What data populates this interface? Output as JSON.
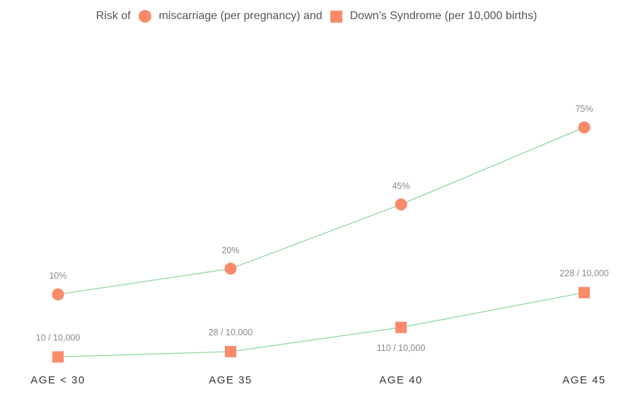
{
  "chart_data": {
    "type": "line",
    "legend": {
      "prefix": "Risk of",
      "and": "and",
      "miscarriage_label": "miscarriage (per pregnancy)",
      "downs_label": "Down’s Syndrome (per 10,000 births)"
    },
    "categories": [
      "AGE < 30",
      "AGE 35",
      "AGE 40",
      "AGE 45"
    ],
    "series": [
      {
        "name": "miscarriage (per pregnancy)",
        "marker": "circle",
        "unit": "percent",
        "values": [
          10,
          20,
          45,
          75
        ],
        "labels": [
          "10%",
          "20%",
          "45%",
          "75%"
        ]
      },
      {
        "name": "Down’s Syndrome (per 10,000 births)",
        "marker": "square",
        "unit": "per 10,000",
        "values": [
          10,
          28,
          110,
          228
        ],
        "labels": [
          "10 / 10,000",
          "28 / 10,000",
          "110 / 10,000",
          "228 / 10,000"
        ]
      }
    ],
    "colors": {
      "marker": "#fa8a6a",
      "line": "#8fd6a0",
      "value_label": "#8a8a8a",
      "axis_label": "#333333"
    }
  }
}
